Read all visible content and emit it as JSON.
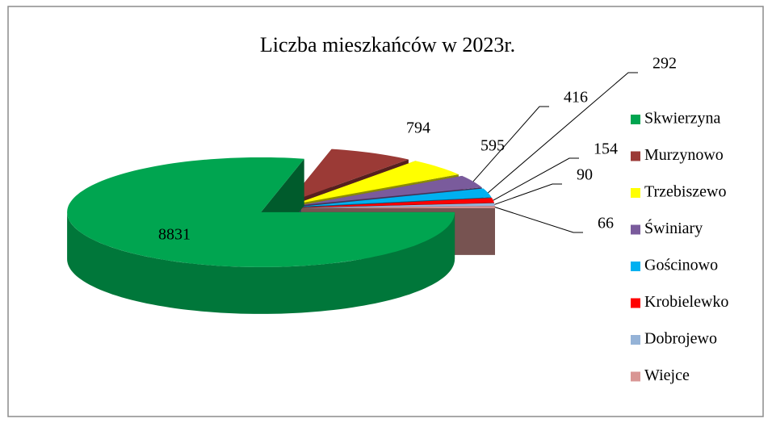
{
  "chart_data": {
    "type": "pie3d",
    "title": "Liczba mieszkańców w 2023r.",
    "categories": [
      "Skwierzyna",
      "Murzynowo",
      "Trzebiszewo",
      "Świniary",
      "Gościnowo",
      "Krobielewko",
      "Dobrojewo",
      "Wiejce"
    ],
    "values": [
      8831,
      794,
      595,
      416,
      292,
      154,
      90,
      66
    ],
    "colors": [
      "#00a550",
      "#9b3a36",
      "#ffff00",
      "#7a5b9c",
      "#00b0f0",
      "#ff0000",
      "#95b3d7",
      "#d99694"
    ],
    "legend": "right"
  }
}
